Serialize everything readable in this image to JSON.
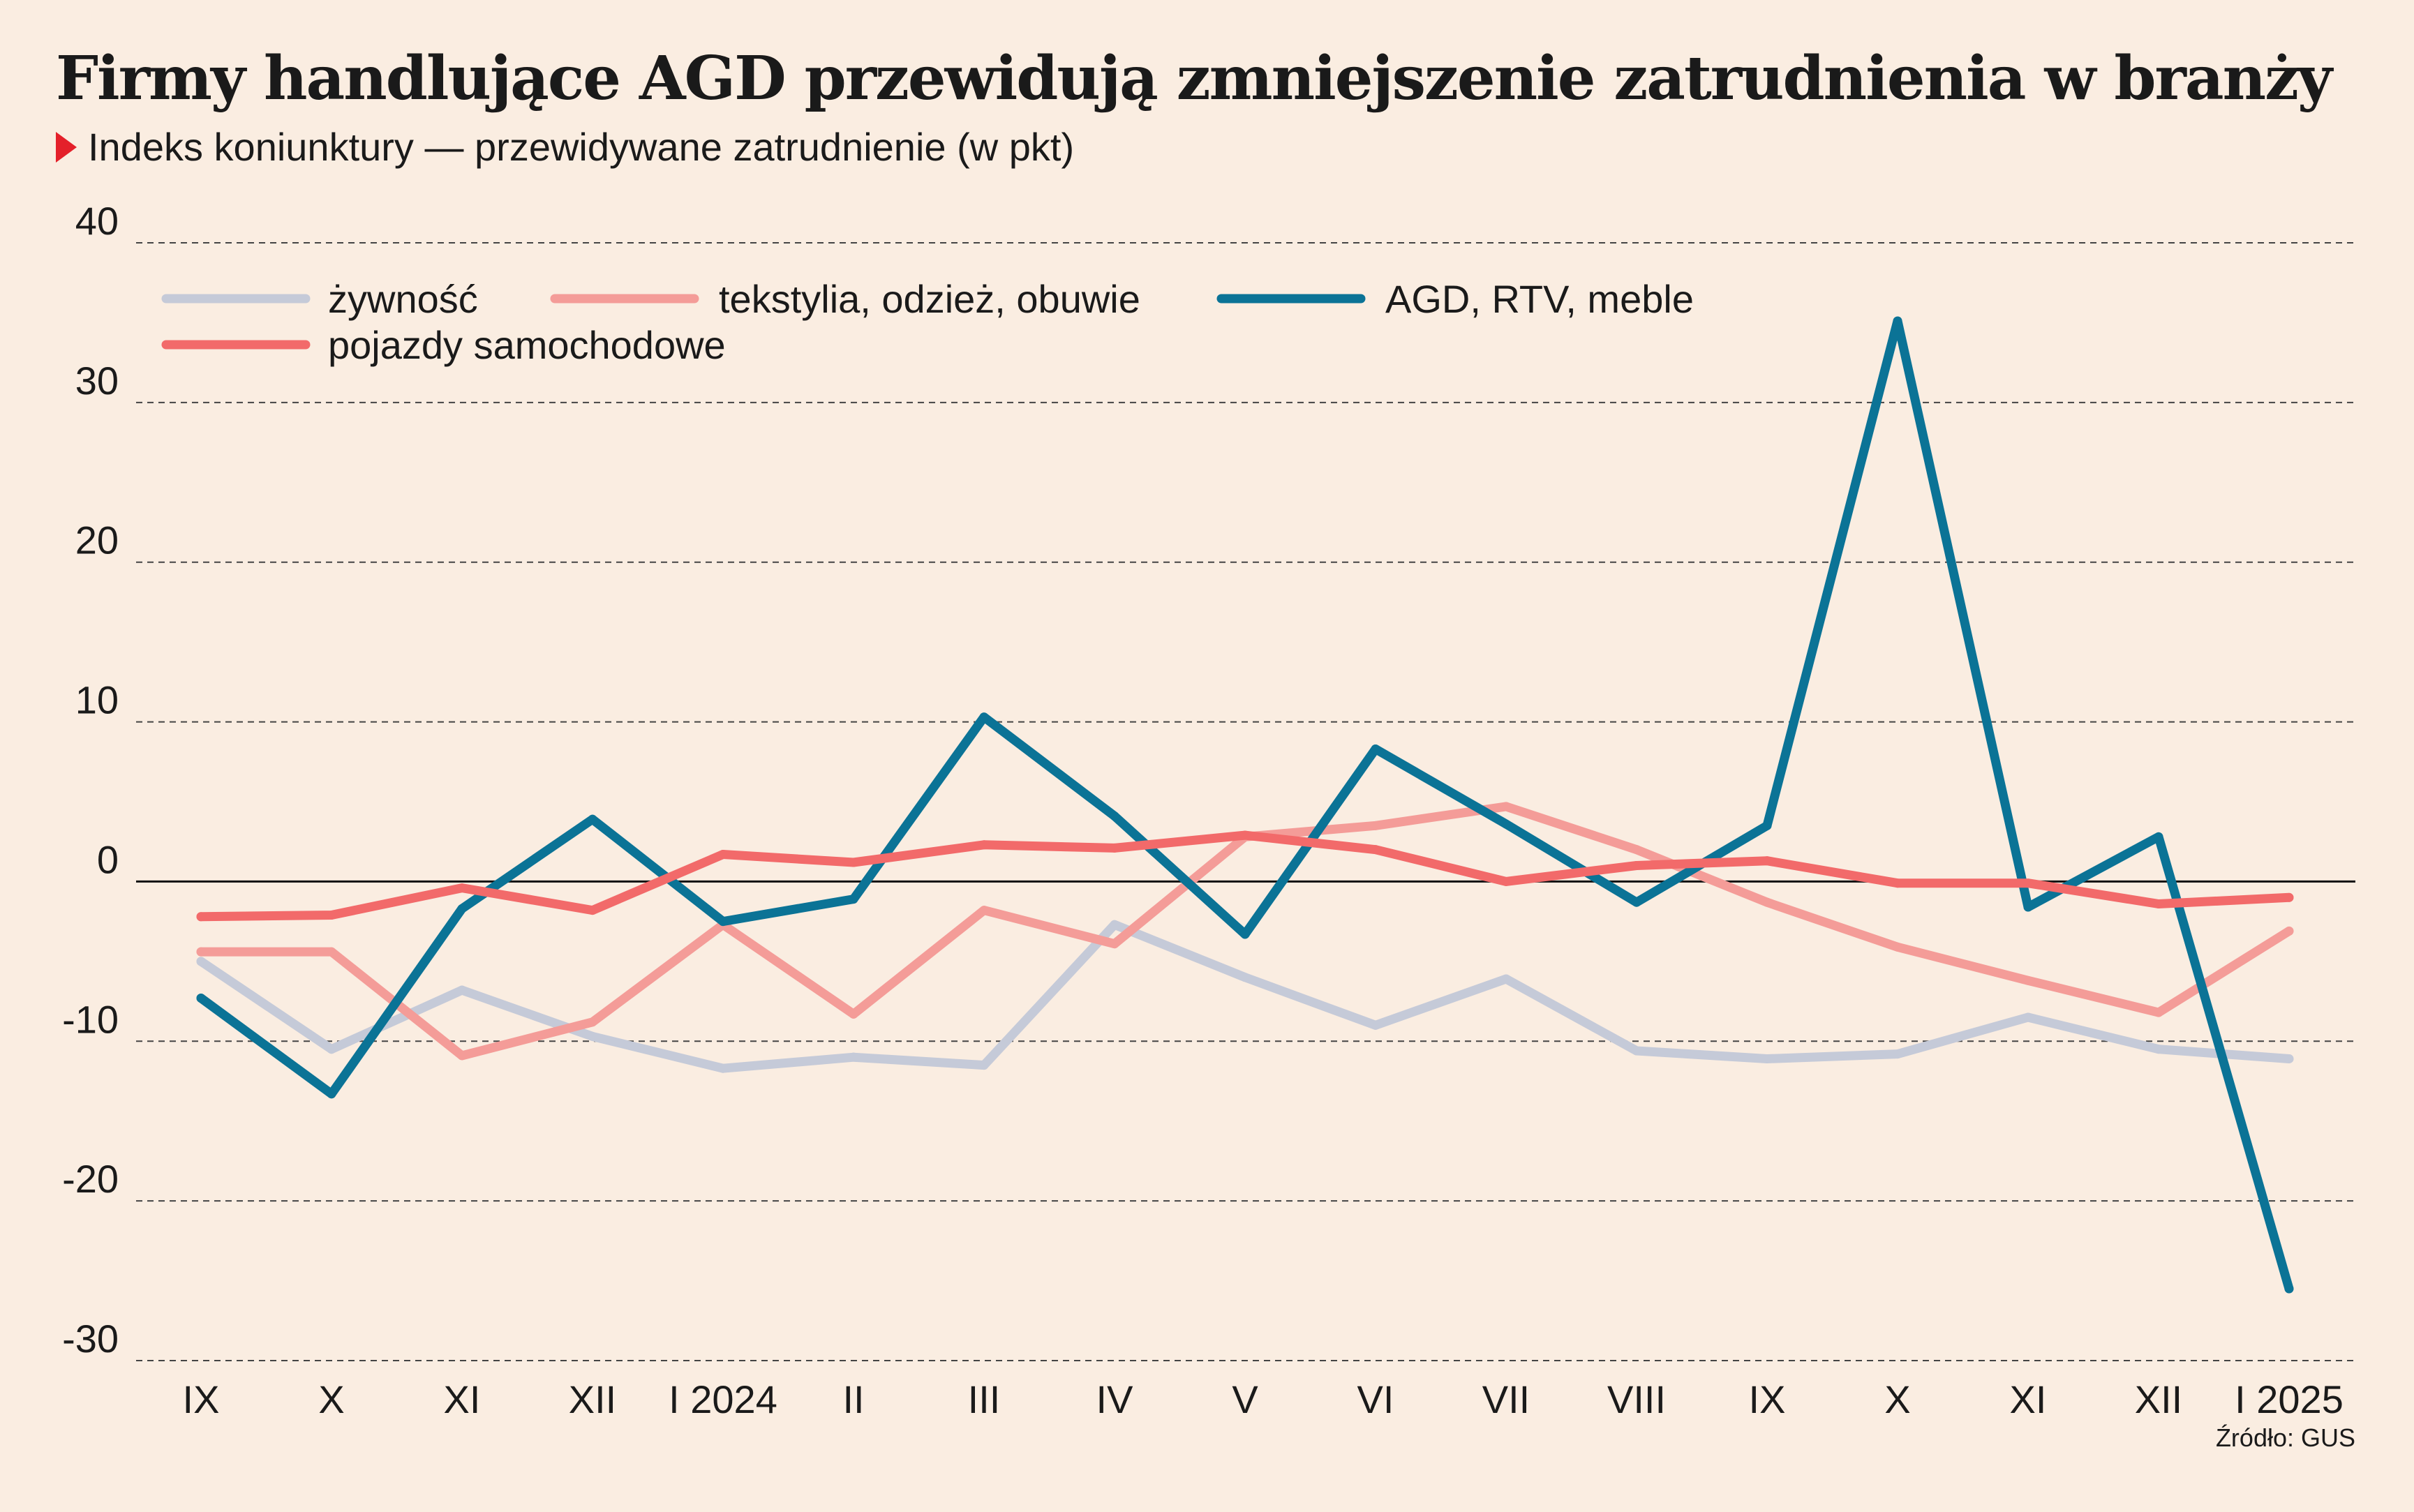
{
  "title": "Firmy handlujące AGD przewidują zmniejszenie zatrudnienia w branży",
  "subtitle": "Indeks koniunktury — przewidywane zatrudnienie (w pkt)",
  "source": "Źródło: GUS",
  "chart_data": {
    "type": "line",
    "categories": [
      "IX",
      "X",
      "XI",
      "XII",
      "I 2024",
      "II",
      "III",
      "IV",
      "V",
      "VI",
      "VII",
      "VIII",
      "IX",
      "X",
      "XI",
      "XII",
      "I 2025"
    ],
    "ylim": [
      -30,
      40
    ],
    "yticks": [
      40,
      30,
      20,
      10,
      0,
      -10,
      -20,
      -30
    ],
    "grid": true,
    "legend_position": "top-left",
    "series": [
      {
        "name": "żywność",
        "color": "#C5CAD8",
        "values": [
          -5,
          -10.5,
          -6.8,
          -9.7,
          -11.7,
          -11,
          -11.5,
          -2.7,
          -6,
          -9,
          -6.1,
          -10.6,
          -11.1,
          -10.8,
          -8.5,
          -10.5,
          -11.1
        ]
      },
      {
        "name": "tekstylia, odzież, obuwie",
        "color": "#F49C98",
        "values": [
          -4.4,
          -4.4,
          -10.9,
          -8.8,
          -2.7,
          -8.3,
          -1.8,
          -3.9,
          2.8,
          3.5,
          4.7,
          2,
          -1.3,
          -4.1,
          -6.2,
          -8.2,
          -3.1
        ]
      },
      {
        "name": "AGD, RTV, meble",
        "color": "#0B7396",
        "values": [
          -7.3,
          -13.3,
          -1.7,
          3.9,
          -2.5,
          -1.1,
          10.3,
          4.1,
          -3.3,
          8.3,
          3.6,
          -1.3,
          3.5,
          35.1,
          -1.6,
          2.8,
          -25.5
        ]
      },
      {
        "name": "pojazdy samochodowe",
        "color": "#F26A6A",
        "values": [
          -2.2,
          -2.1,
          -0.4,
          -1.8,
          1.7,
          1.2,
          2.3,
          2.1,
          2.9,
          2,
          0,
          1,
          1.3,
          -0.1,
          -0.1,
          -1.4,
          -1
        ]
      }
    ]
  }
}
